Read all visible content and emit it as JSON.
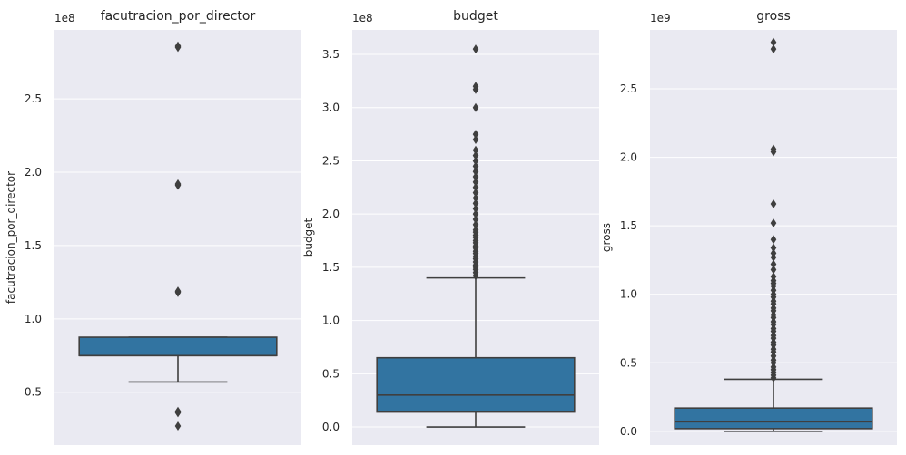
{
  "chart_data": [
    {
      "type": "box",
      "title": "facutracion_por_director",
      "xlabel": "",
      "ylabel": "facutracion_por_director",
      "multiplier": "1e8",
      "ylim": [
        0.14,
        2.97
      ],
      "yticks": [
        0.5,
        1.0,
        1.5,
        2.0,
        2.5
      ],
      "ytick_labels": [
        "0.5",
        "1.0",
        "1.5",
        "2.0",
        "2.5"
      ],
      "grid": true,
      "box": {
        "whisker_low": 0.57,
        "q1": 0.75,
        "median": 0.75,
        "q3": 0.875,
        "whisker_high": 0.875
      },
      "outliers": [
        0.27,
        0.36,
        0.365,
        0.37,
        1.18,
        1.185,
        1.19,
        1.91,
        1.915,
        1.92,
        2.85,
        2.855,
        2.86
      ]
    },
    {
      "type": "box",
      "title": "budget",
      "xlabel": "",
      "ylabel": "budget",
      "multiplier": "1e8",
      "ylim": [
        -0.17,
        3.73
      ],
      "yticks": [
        0.0,
        0.5,
        1.0,
        1.5,
        2.0,
        2.5,
        3.0,
        3.5
      ],
      "ytick_labels": [
        "0.0",
        "0.5",
        "1.0",
        "1.5",
        "2.0",
        "2.5",
        "3.0",
        "3.5"
      ],
      "grid": true,
      "box": {
        "whisker_low": 0.0,
        "q1": 0.14,
        "median": 0.3,
        "q3": 0.65,
        "whisker_high": 1.4
      },
      "outliers": [
        1.42,
        1.45,
        1.48,
        1.5,
        1.52,
        1.55,
        1.58,
        1.6,
        1.63,
        1.65,
        1.68,
        1.7,
        1.73,
        1.75,
        1.78,
        1.8,
        1.83,
        1.85,
        1.9,
        1.95,
        2.0,
        2.05,
        2.1,
        2.15,
        2.2,
        2.25,
        2.3,
        2.35,
        2.4,
        2.45,
        2.5,
        2.55,
        2.6,
        2.7,
        2.75,
        3.0,
        3.17,
        3.2,
        3.55
      ]
    },
    {
      "type": "box",
      "title": "gross",
      "xlabel": "",
      "ylabel": "gross",
      "multiplier": "1e9",
      "ylim": [
        -0.1,
        2.93
      ],
      "yticks": [
        0.0,
        0.5,
        1.0,
        1.5,
        2.0,
        2.5
      ],
      "ytick_labels": [
        "0.0",
        "0.5",
        "1.0",
        "1.5",
        "2.0",
        "2.5"
      ],
      "grid": true,
      "box": {
        "whisker_low": 0.0,
        "q1": 0.02,
        "median": 0.07,
        "q3": 0.17,
        "whisker_high": 0.38
      },
      "outliers": [
        0.39,
        0.41,
        0.43,
        0.45,
        0.47,
        0.5,
        0.52,
        0.55,
        0.58,
        0.6,
        0.63,
        0.65,
        0.68,
        0.7,
        0.73,
        0.75,
        0.78,
        0.8,
        0.83,
        0.85,
        0.88,
        0.9,
        0.93,
        0.95,
        0.98,
        1.0,
        1.03,
        1.06,
        1.08,
        1.1,
        1.13,
        1.18,
        1.22,
        1.27,
        1.3,
        1.34,
        1.4,
        1.52,
        1.66,
        2.04,
        2.06,
        2.79,
        2.84
      ]
    }
  ],
  "colors": {
    "plot_bg": "#eaeaf2",
    "grid": "#ffffff",
    "box_fill": "#3274a1",
    "line": "#3f3f3f",
    "text": "#262626"
  }
}
